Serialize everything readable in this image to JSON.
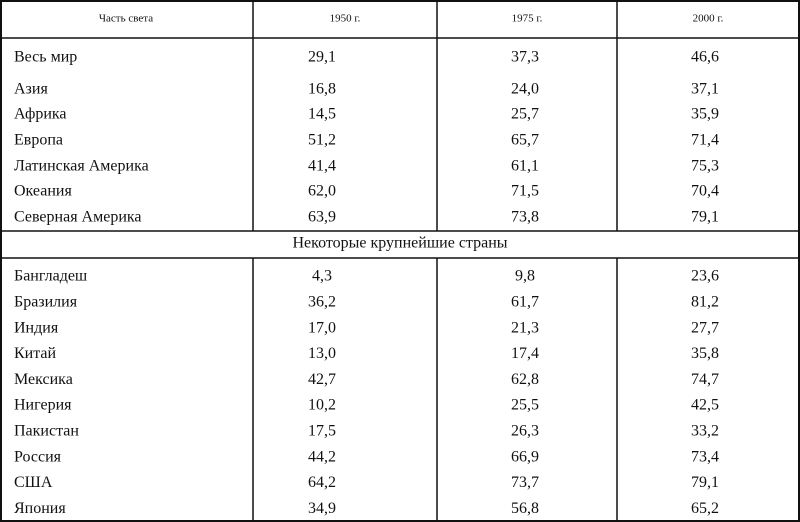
{
  "table": {
    "header": [
      "Часть света",
      "1950 г.",
      "1975 г.",
      "2000 г."
    ],
    "rows": [
      [
        "Весь мир",
        "29,1",
        "37,3",
        "46,6"
      ],
      [
        "Азия",
        "16,8",
        "24,0",
        "37,1"
      ],
      [
        "Африка",
        "14,5",
        "25,7",
        "35,9"
      ],
      [
        "Европа",
        "51,2",
        "65,7",
        "71,4"
      ],
      [
        "Латинская Америка",
        "41,4",
        "61,1",
        "75,3"
      ],
      [
        "Океания",
        "62,0",
        "71,5",
        "70,4"
      ],
      [
        "Северная Америка",
        "63,9",
        "73,8",
        "79,1"
      ]
    ],
    "section": "Некоторые крупнейшие страны",
    "country_rows": [
      [
        "Бангладеш",
        "4,3",
        "9,8",
        "23,6"
      ],
      [
        "Бразилия",
        "36,2",
        "61,7",
        "81,2"
      ],
      [
        "Индия",
        "17,0",
        "21,3",
        "27,7"
      ],
      [
        "Китай",
        "13,0",
        "17,4",
        "35,8"
      ],
      [
        "Мексика",
        "42,7",
        "62,8",
        "74,7"
      ],
      [
        "Нигерия",
        "10,2",
        "25,5",
        "42,5"
      ],
      [
        "Пакистан",
        "17,5",
        "26,3",
        "33,2"
      ],
      [
        "Россия",
        "44,2",
        "66,9",
        "73,4"
      ],
      [
        "США",
        "64,2",
        "73,7",
        "79,1"
      ],
      [
        "Япония",
        "34,9",
        "56,8",
        "65,2"
      ]
    ]
  }
}
